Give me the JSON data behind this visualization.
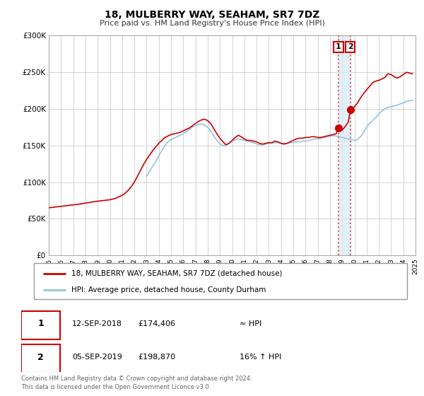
{
  "title": "18, MULBERRY WAY, SEAHAM, SR7 7DZ",
  "subtitle": "Price paid vs. HM Land Registry's House Price Index (HPI)",
  "legend_line1": "18, MULBERRY WAY, SEAHAM, SR7 7DZ (detached house)",
  "legend_line2": "HPI: Average price, detached house, County Durham",
  "table_row1": [
    "1",
    "12-SEP-2018",
    "£174,406",
    "≈ HPI"
  ],
  "table_row2": [
    "2",
    "05-SEP-2019",
    "£198,870",
    "16% ↑ HPI"
  ],
  "footnote1": "Contains HM Land Registry data © Crown copyright and database right 2024.",
  "footnote2": "This data is licensed under the Open Government Licence v3.0.",
  "hpi_color": "#92c5de",
  "price_color": "#cc0000",
  "vline_color": "#e06060",
  "shade_color": "#d6eaf8",
  "marker_color": "#cc0000",
  "background_color": "#ffffff",
  "grid_color": "#cccccc",
  "xmin": 1995,
  "xmax": 2025,
  "ymin": 0,
  "ymax": 300000,
  "yticks": [
    0,
    50000,
    100000,
    150000,
    200000,
    250000,
    300000
  ],
  "ytick_labels": [
    "£0",
    "£50K",
    "£100K",
    "£150K",
    "£200K",
    "£250K",
    "£300K"
  ],
  "xticks": [
    1995,
    1996,
    1997,
    1998,
    1999,
    2000,
    2001,
    2002,
    2003,
    2004,
    2005,
    2006,
    2007,
    2008,
    2009,
    2010,
    2011,
    2012,
    2013,
    2014,
    2015,
    2016,
    2017,
    2018,
    2019,
    2020,
    2021,
    2022,
    2023,
    2024,
    2025
  ],
  "event1_x": 2018.7,
  "event1_y": 174406,
  "event2_x": 2019.67,
  "event2_y": 198870,
  "hpi_data": [
    [
      2003.0,
      108000
    ],
    [
      2003.25,
      115000
    ],
    [
      2003.5,
      122000
    ],
    [
      2003.75,
      128000
    ],
    [
      2004.0,
      136000
    ],
    [
      2004.25,
      143000
    ],
    [
      2004.5,
      150000
    ],
    [
      2004.75,
      155000
    ],
    [
      2005.0,
      158000
    ],
    [
      2005.25,
      160000
    ],
    [
      2005.5,
      162000
    ],
    [
      2005.75,
      164000
    ],
    [
      2006.0,
      166000
    ],
    [
      2006.25,
      169000
    ],
    [
      2006.5,
      172000
    ],
    [
      2006.75,
      175000
    ],
    [
      2007.0,
      177000
    ],
    [
      2007.25,
      179000
    ],
    [
      2007.5,
      179500
    ],
    [
      2007.75,
      178000
    ],
    [
      2008.0,
      175000
    ],
    [
      2008.25,
      170000
    ],
    [
      2008.5,
      163000
    ],
    [
      2008.75,
      157000
    ],
    [
      2009.0,
      152000
    ],
    [
      2009.25,
      150000
    ],
    [
      2009.5,
      151000
    ],
    [
      2009.75,
      153000
    ],
    [
      2010.0,
      156000
    ],
    [
      2010.25,
      158000
    ],
    [
      2010.5,
      159000
    ],
    [
      2010.75,
      158000
    ],
    [
      2011.0,
      157000
    ],
    [
      2011.25,
      156000
    ],
    [
      2011.5,
      155000
    ],
    [
      2011.75,
      154000
    ],
    [
      2012.0,
      152000
    ],
    [
      2012.25,
      151000
    ],
    [
      2012.5,
      151000
    ],
    [
      2012.75,
      152000
    ],
    [
      2013.0,
      153000
    ],
    [
      2013.25,
      153000
    ],
    [
      2013.5,
      154000
    ],
    [
      2013.75,
      154000
    ],
    [
      2014.0,
      153000
    ],
    [
      2014.25,
      153000
    ],
    [
      2014.5,
      153000
    ],
    [
      2014.75,
      154000
    ],
    [
      2015.0,
      154000
    ],
    [
      2015.25,
      155000
    ],
    [
      2015.5,
      155000
    ],
    [
      2015.75,
      156000
    ],
    [
      2016.0,
      156000
    ],
    [
      2016.25,
      157000
    ],
    [
      2016.5,
      158000
    ],
    [
      2016.75,
      159000
    ],
    [
      2017.0,
      159000
    ],
    [
      2017.25,
      160000
    ],
    [
      2017.5,
      161000
    ],
    [
      2017.75,
      162000
    ],
    [
      2018.0,
      163000
    ],
    [
      2018.25,
      163500
    ],
    [
      2018.5,
      163000
    ],
    [
      2018.75,
      162000
    ],
    [
      2019.0,
      161000
    ],
    [
      2019.25,
      160000
    ],
    [
      2019.5,
      159000
    ],
    [
      2019.75,
      158000
    ],
    [
      2020.0,
      157000
    ],
    [
      2020.25,
      158000
    ],
    [
      2020.5,
      162000
    ],
    [
      2020.75,
      168000
    ],
    [
      2021.0,
      175000
    ],
    [
      2021.25,
      180000
    ],
    [
      2021.5,
      184000
    ],
    [
      2021.75,
      188000
    ],
    [
      2022.0,
      193000
    ],
    [
      2022.25,
      197000
    ],
    [
      2022.5,
      200000
    ],
    [
      2022.75,
      202000
    ],
    [
      2023.0,
      203000
    ],
    [
      2023.25,
      204000
    ],
    [
      2023.5,
      205000
    ],
    [
      2023.75,
      207000
    ],
    [
      2024.0,
      208000
    ],
    [
      2024.25,
      210000
    ],
    [
      2024.5,
      211000
    ],
    [
      2024.75,
      212000
    ]
  ],
  "price_data": [
    [
      1995.0,
      65000
    ],
    [
      1995.25,
      65500
    ],
    [
      1995.5,
      66000
    ],
    [
      1995.75,
      66500
    ],
    [
      1996.0,
      67000
    ],
    [
      1996.25,
      67500
    ],
    [
      1996.5,
      68000
    ],
    [
      1996.75,
      68500
    ],
    [
      1997.0,
      69000
    ],
    [
      1997.25,
      69500
    ],
    [
      1997.5,
      70000
    ],
    [
      1997.75,
      70800
    ],
    [
      1998.0,
      71500
    ],
    [
      1998.25,
      72000
    ],
    [
      1998.5,
      72800
    ],
    [
      1998.75,
      73500
    ],
    [
      1999.0,
      74000
    ],
    [
      1999.25,
      74500
    ],
    [
      1999.5,
      75000
    ],
    [
      1999.75,
      75500
    ],
    [
      2000.0,
      76000
    ],
    [
      2000.25,
      77000
    ],
    [
      2000.5,
      78000
    ],
    [
      2000.75,
      80000
    ],
    [
      2001.0,
      82000
    ],
    [
      2001.25,
      85000
    ],
    [
      2001.5,
      89000
    ],
    [
      2001.75,
      94000
    ],
    [
      2002.0,
      100000
    ],
    [
      2002.25,
      108000
    ],
    [
      2002.5,
      116000
    ],
    [
      2002.75,
      124000
    ],
    [
      2003.0,
      131000
    ],
    [
      2003.25,
      137000
    ],
    [
      2003.5,
      143000
    ],
    [
      2003.75,
      148000
    ],
    [
      2004.0,
      153000
    ],
    [
      2004.25,
      157000
    ],
    [
      2004.5,
      161000
    ],
    [
      2004.75,
      163000
    ],
    [
      2005.0,
      165000
    ],
    [
      2005.25,
      166000
    ],
    [
      2005.5,
      167000
    ],
    [
      2005.75,
      168000
    ],
    [
      2006.0,
      170000
    ],
    [
      2006.25,
      172000
    ],
    [
      2006.5,
      174000
    ],
    [
      2006.75,
      177000
    ],
    [
      2007.0,
      180000
    ],
    [
      2007.25,
      183000
    ],
    [
      2007.5,
      185000
    ],
    [
      2007.75,
      186000
    ],
    [
      2008.0,
      184000
    ],
    [
      2008.25,
      180000
    ],
    [
      2008.5,
      173000
    ],
    [
      2008.75,
      166000
    ],
    [
      2009.0,
      160000
    ],
    [
      2009.25,
      155000
    ],
    [
      2009.5,
      151000
    ],
    [
      2009.75,
      153000
    ],
    [
      2010.0,
      157000
    ],
    [
      2010.25,
      161000
    ],
    [
      2010.5,
      164000
    ],
    [
      2010.75,
      162000
    ],
    [
      2011.0,
      159000
    ],
    [
      2011.25,
      157000
    ],
    [
      2011.5,
      157000
    ],
    [
      2011.75,
      156000
    ],
    [
      2012.0,
      155000
    ],
    [
      2012.25,
      153000
    ],
    [
      2012.5,
      152000
    ],
    [
      2012.75,
      153000
    ],
    [
      2013.0,
      154000
    ],
    [
      2013.25,
      154000
    ],
    [
      2013.5,
      156000
    ],
    [
      2013.75,
      155000
    ],
    [
      2014.0,
      153000
    ],
    [
      2014.25,
      152000
    ],
    [
      2014.5,
      153000
    ],
    [
      2014.75,
      155000
    ],
    [
      2015.0,
      157000
    ],
    [
      2015.25,
      159000
    ],
    [
      2015.5,
      160000
    ],
    [
      2015.75,
      160000
    ],
    [
      2016.0,
      161000
    ],
    [
      2016.25,
      161000
    ],
    [
      2016.5,
      162000
    ],
    [
      2016.75,
      162000
    ],
    [
      2017.0,
      161000
    ],
    [
      2017.25,
      161000
    ],
    [
      2017.5,
      162000
    ],
    [
      2017.75,
      163000
    ],
    [
      2018.0,
      164000
    ],
    [
      2018.25,
      165000
    ],
    [
      2018.5,
      166000
    ],
    [
      2018.7,
      174406
    ],
    [
      2019.0,
      171000
    ],
    [
      2019.25,
      176000
    ],
    [
      2019.5,
      182000
    ],
    [
      2019.67,
      198870
    ],
    [
      2020.0,
      203000
    ],
    [
      2020.25,
      208000
    ],
    [
      2020.5,
      215000
    ],
    [
      2020.75,
      221000
    ],
    [
      2021.0,
      226000
    ],
    [
      2021.25,
      231000
    ],
    [
      2021.5,
      236000
    ],
    [
      2021.75,
      238000
    ],
    [
      2022.0,
      239000
    ],
    [
      2022.25,
      241000
    ],
    [
      2022.5,
      243000
    ],
    [
      2022.75,
      248000
    ],
    [
      2023.0,
      247000
    ],
    [
      2023.25,
      244000
    ],
    [
      2023.5,
      242000
    ],
    [
      2023.75,
      244000
    ],
    [
      2024.0,
      247000
    ],
    [
      2024.25,
      250000
    ],
    [
      2024.5,
      249000
    ],
    [
      2024.75,
      248000
    ]
  ]
}
